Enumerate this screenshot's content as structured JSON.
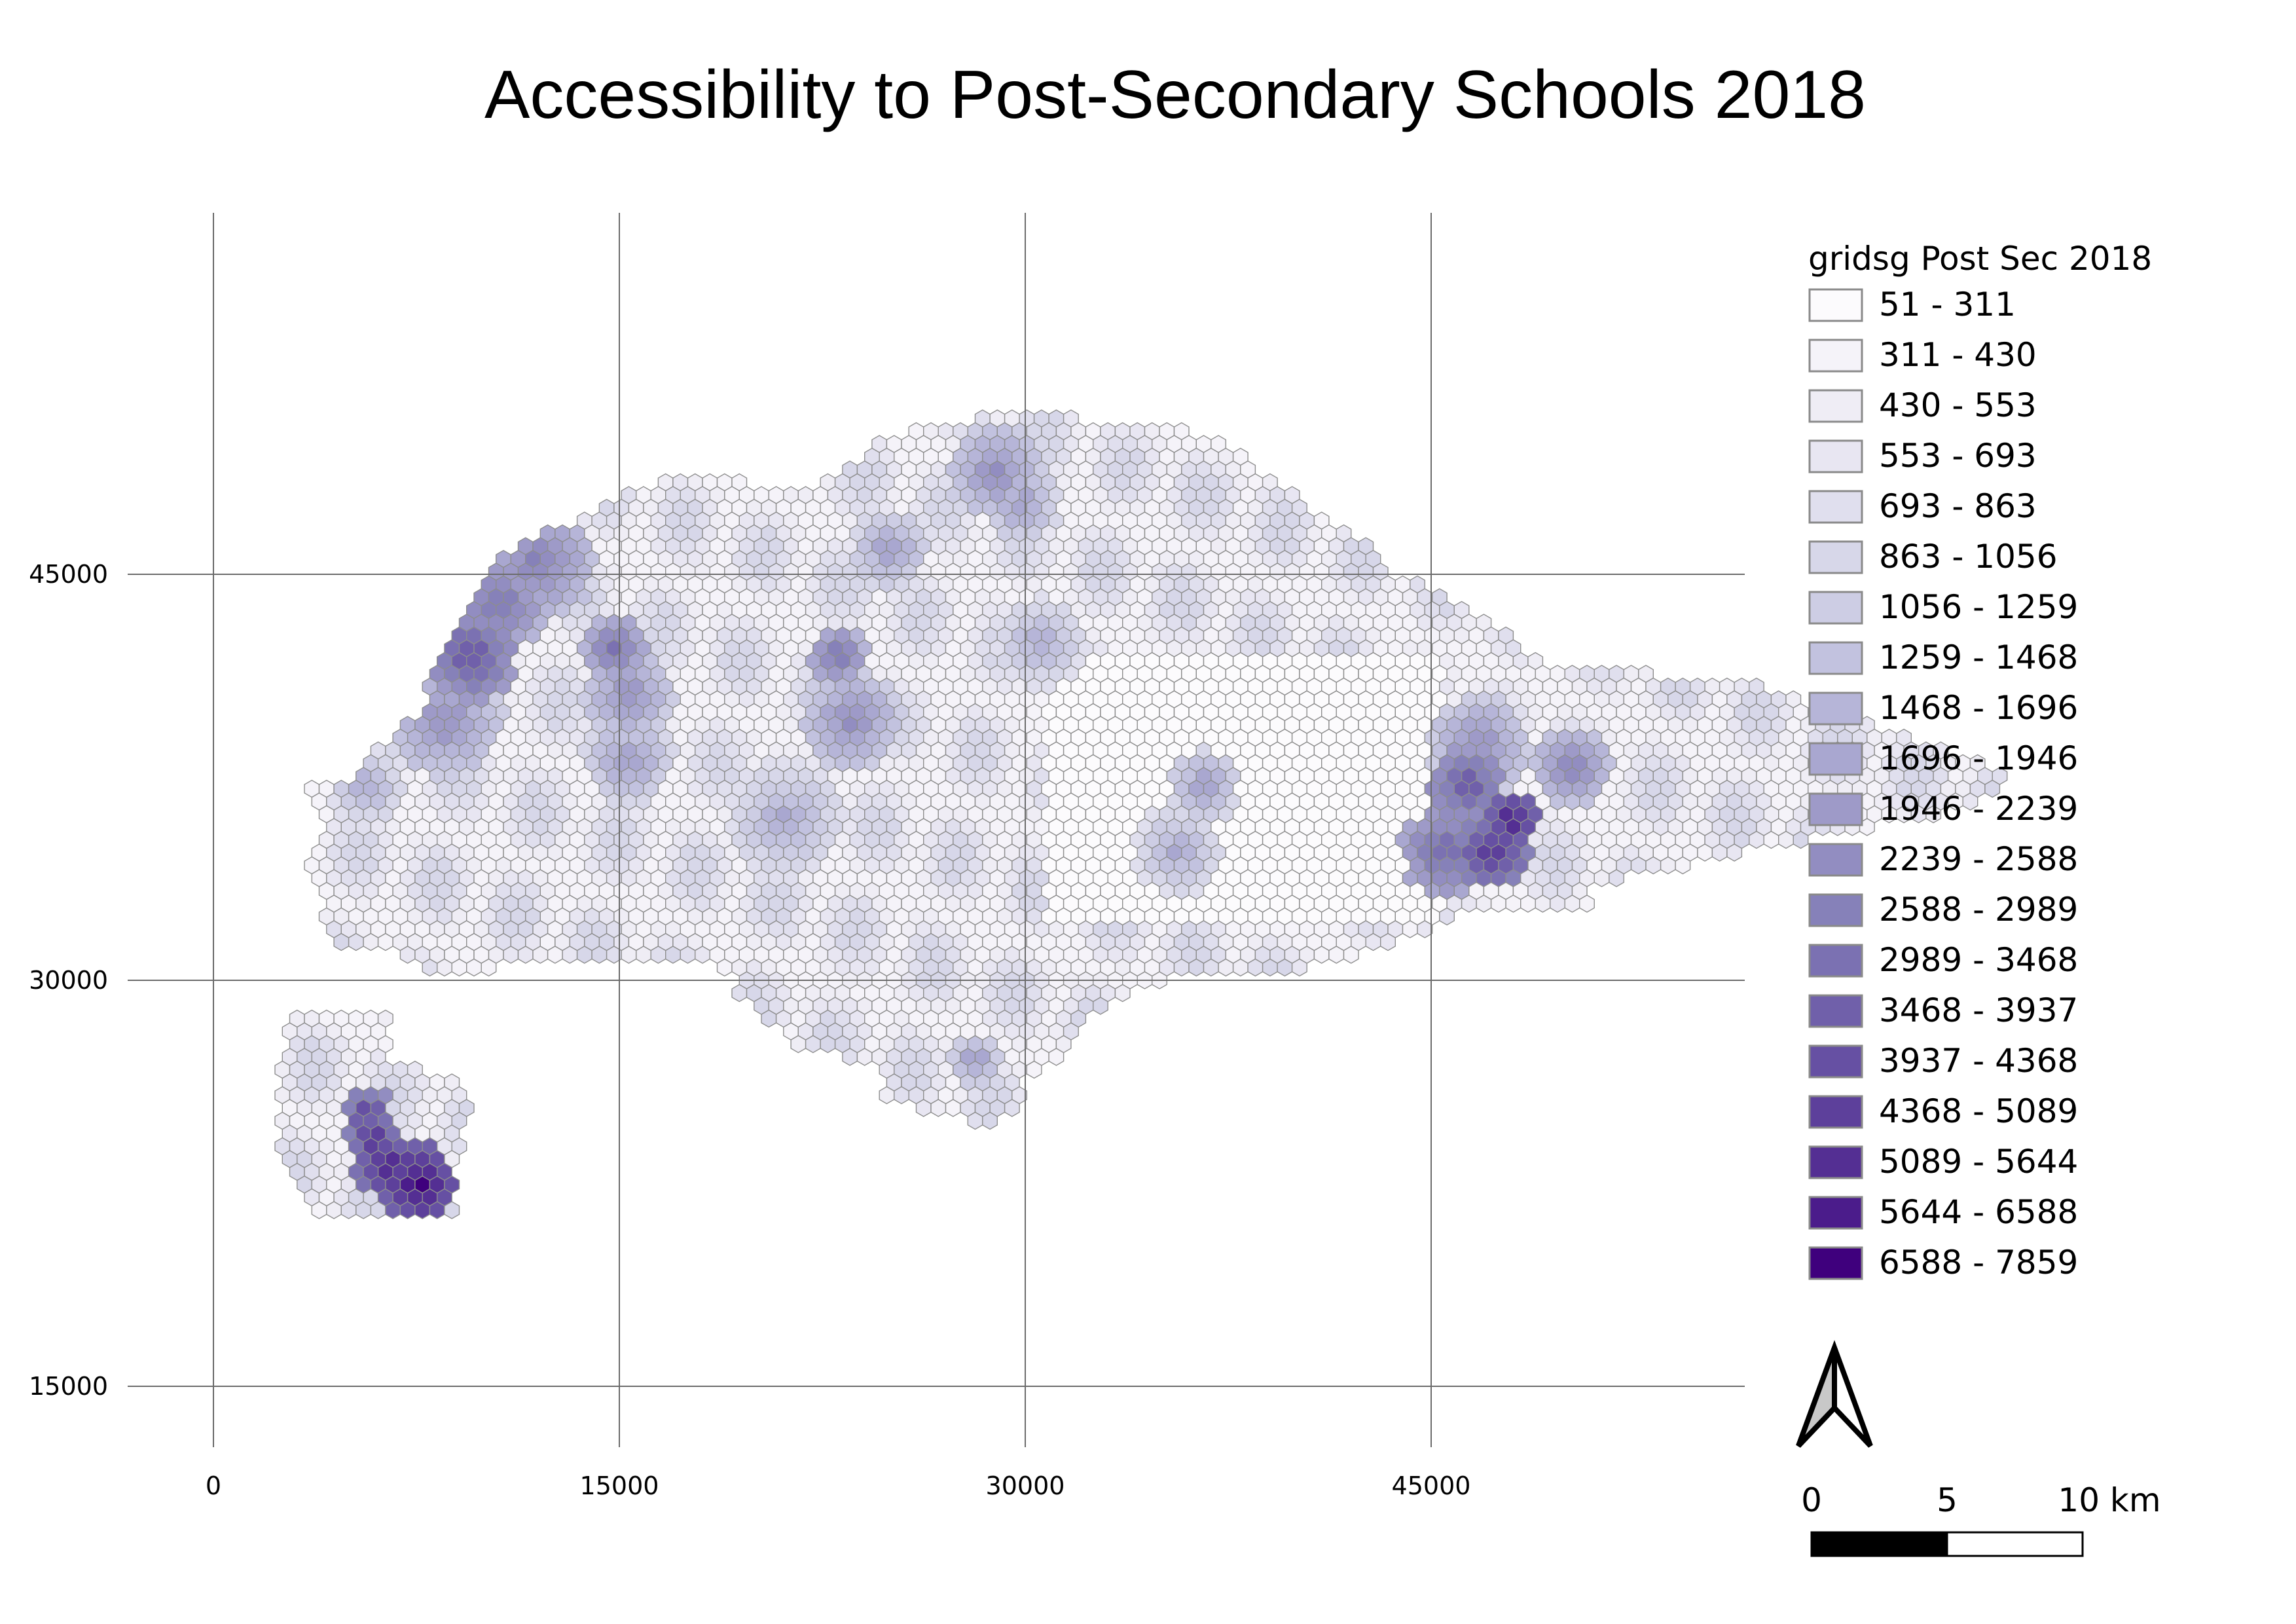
{
  "title": "Accessibility to Post-Secondary Schools 2018",
  "map": {
    "x_ticks": [
      0,
      15000,
      30000,
      45000
    ],
    "y_ticks": [
      45000,
      30000,
      15000
    ],
    "x_tick_labels": [
      "0",
      "15000",
      "30000",
      "45000"
    ],
    "y_tick_labels": [
      "45000",
      "30000",
      "15000"
    ]
  },
  "legend": {
    "title": "gridsg Post Sec 2018",
    "classes": [
      {
        "label": "51 - 311",
        "color": "#fcfbfd"
      },
      {
        "label": "311 - 430",
        "color": "#f5f3f9"
      },
      {
        "label": "430 - 553",
        "color": "#efedf5"
      },
      {
        "label": "553 - 693",
        "color": "#e8e6f2"
      },
      {
        "label": "693 - 863",
        "color": "#e0dfee"
      },
      {
        "label": "863 - 1056",
        "color": "#d7d7e9"
      },
      {
        "label": "1056 - 1259",
        "color": "#cdcde4"
      },
      {
        "label": "1259 - 1468",
        "color": "#c2c2df"
      },
      {
        "label": "1468 - 1696",
        "color": "#b6b5d8"
      },
      {
        "label": "1696 - 1946",
        "color": "#a9a7d0"
      },
      {
        "label": "1946 - 2239",
        "color": "#9e9ac8"
      },
      {
        "label": "2239 - 2588",
        "color": "#928dc1"
      },
      {
        "label": "2588 - 2989",
        "color": "#8681b9"
      },
      {
        "label": "2989 - 3468",
        "color": "#7b71b2"
      },
      {
        "label": "3468 - 3937",
        "color": "#7060aa"
      },
      {
        "label": "3937 - 4368",
        "color": "#6650a3"
      },
      {
        "label": "4368 - 5089",
        "color": "#5d409b"
      },
      {
        "label": "5089 - 5644",
        "color": "#542f93"
      },
      {
        "label": "5644 - 6588",
        "color": "#4b1c8b"
      },
      {
        "label": "6588 - 7859",
        "color": "#3f007d"
      }
    ]
  },
  "scale_bar": {
    "labels": [
      "0",
      "5",
      "10 km"
    ]
  },
  "north_arrow": {
    "icon": "north-arrow-icon"
  }
}
